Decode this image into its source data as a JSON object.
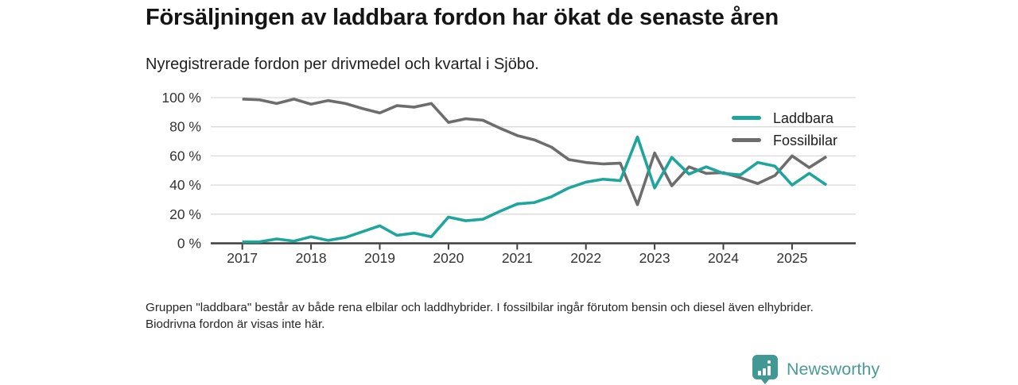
{
  "header": {
    "title": "Försäljningen av laddbara fordon har ökat de senaste åren",
    "subtitle": "Nyregistrerade fordon per drivmedel och kvartal i Sjöbo."
  },
  "chart_data": {
    "type": "line",
    "title": "Försäljningen av laddbara fordon har ökat de senaste åren",
    "subtitle": "Nyregistrerade fordon per drivmedel och kvartal i Sjöbo.",
    "x_unit": "quarter",
    "x_start": "2017 Q1",
    "x_end": "2025 Q3",
    "x_tick_labels": [
      "2017",
      "2018",
      "2019",
      "2020",
      "2021",
      "2022",
      "2023",
      "2024",
      "2025"
    ],
    "y_tick_labels": [
      "0 %",
      "20 %",
      "40 %",
      "60 %",
      "80 %",
      "100 %"
    ],
    "ylim": [
      0,
      100
    ],
    "grid": "horizontal",
    "legend_position": "top-right",
    "series": [
      {
        "name": "Laddbara",
        "color": "#1fa69c",
        "values": [
          1,
          1,
          3,
          1.5,
          4.5,
          2,
          4,
          8,
          12,
          5.5,
          7,
          4.5,
          18,
          15.5,
          16.5,
          22,
          27,
          28,
          32,
          38,
          42,
          44,
          43,
          73,
          38,
          59,
          47.5,
          52.5,
          48,
          47,
          55.5,
          53,
          40,
          48,
          40
        ]
      },
      {
        "name": "Fossilbilar",
        "color": "#6d6d6d",
        "values": [
          99,
          98.5,
          96,
          99,
          95.5,
          98,
          96,
          92.5,
          89.5,
          94.5,
          93.5,
          96,
          83,
          85.5,
          84.5,
          79,
          74,
          71,
          66,
          57.5,
          55.5,
          54.5,
          55,
          26.5,
          62,
          39.5,
          52.5,
          48,
          48.5,
          45,
          41,
          46.5,
          60,
          52,
          59.5
        ]
      }
    ]
  },
  "footnote": {
    "text": "Gruppen \"laddbara\" består av både rena elbilar och laddhybrider. I fossilbilar ingår förutom bensin och diesel även elhybrider. Biodrivna fordon är visas inte här."
  },
  "logo": {
    "name": "Newsworthy",
    "icon": "newsworthy-bar-chart-pin-icon",
    "icon_color": "#419894",
    "text_color": "#4b9c99"
  }
}
